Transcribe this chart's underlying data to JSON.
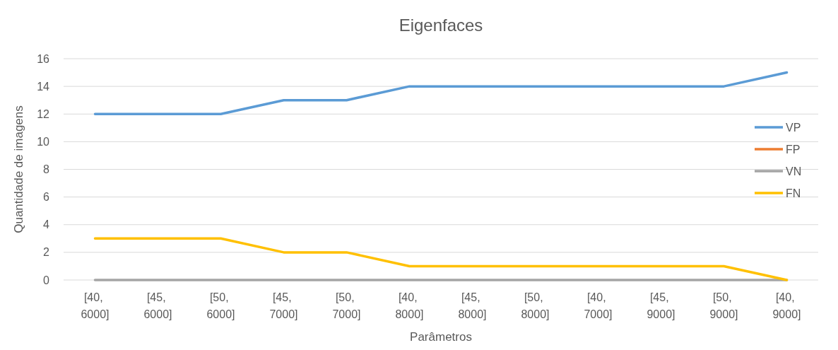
{
  "chart_data": {
    "type": "line",
    "title": "Eigenfaces",
    "xlabel": "Parâmetros",
    "ylabel": "Quantidade de imagens",
    "categories": [
      "[40, 6000]",
      "[45, 6000]",
      "[50, 6000]",
      "[45, 7000]",
      "[50, 7000]",
      "[40, 8000]",
      "[45, 8000]",
      "[50, 8000]",
      "[40, 7000]",
      "[45, 9000]",
      "[50, 9000]",
      "[40, 9000]"
    ],
    "series": [
      {
        "name": "VP",
        "color": "#5b9bd5",
        "values": [
          12,
          12,
          12,
          13,
          13,
          14,
          14,
          14,
          14,
          14,
          14,
          15
        ]
      },
      {
        "name": "FP",
        "color": "#ed7d31",
        "values": [
          null,
          null,
          null,
          null,
          null,
          null,
          null,
          null,
          null,
          null,
          null,
          null
        ]
      },
      {
        "name": "VN",
        "color": "#a5a5a5",
        "values": [
          0,
          0,
          0,
          0,
          0,
          0,
          0,
          0,
          0,
          0,
          0,
          0
        ]
      },
      {
        "name": "FN",
        "color": "#ffc000",
        "values": [
          3,
          3,
          3,
          2,
          2,
          1,
          1,
          1,
          1,
          1,
          1,
          0
        ]
      }
    ],
    "ylim": [
      0,
      16
    ],
    "yticks": [
      0,
      2,
      4,
      6,
      8,
      10,
      12,
      14,
      16
    ],
    "grid": "y",
    "legend": "right",
    "marker": "none",
    "line_style": "solid"
  }
}
